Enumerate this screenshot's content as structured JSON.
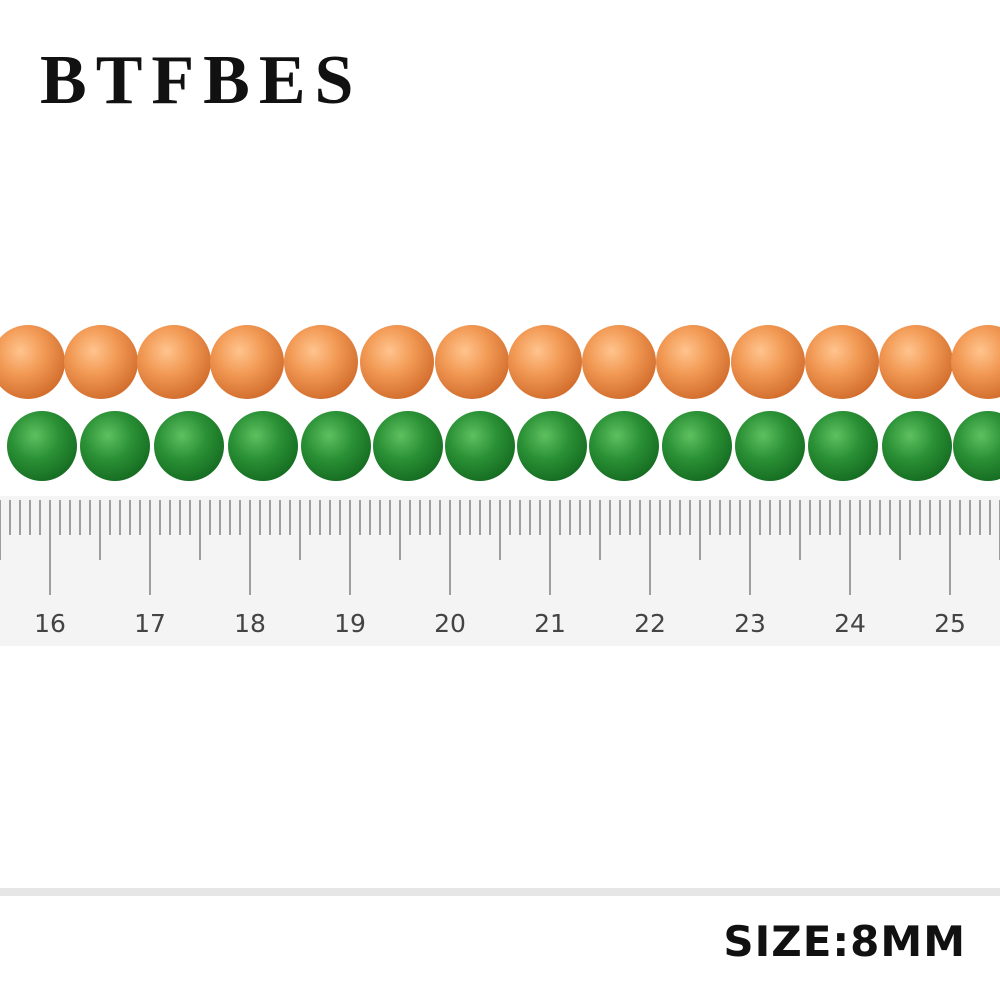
{
  "brand": "BTFBES",
  "ruler": {
    "labels": [
      "16",
      "17",
      "18",
      "19",
      "20",
      "21",
      "22",
      "23",
      "24",
      "25"
    ]
  },
  "size_label": "SIZE:8MM"
}
